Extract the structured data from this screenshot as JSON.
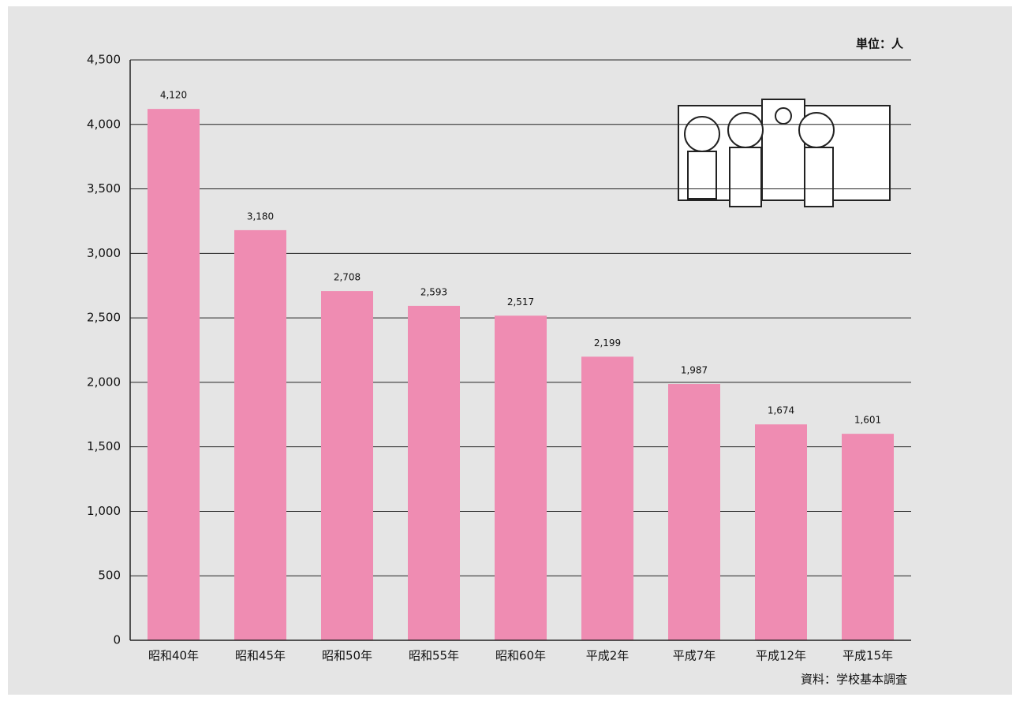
{
  "chart_data": {
    "type": "bar",
    "unit_label": "単位：人",
    "source": "資料：学校基本調査",
    "categories": [
      "昭和40年",
      "昭和45年",
      "昭和50年",
      "昭和55年",
      "昭和60年",
      "平成2年",
      "平成7年",
      "平成12年",
      "平成15年"
    ],
    "values": [
      4120,
      3180,
      2708,
      2593,
      2517,
      2199,
      1987,
      1674,
      1601
    ],
    "value_labels": [
      "4,120",
      "3,180",
      "2,708",
      "2,593",
      "2,517",
      "2,199",
      "1,987",
      "1,674",
      "1,601"
    ],
    "color": "#ef8cb2",
    "ylim": [
      0,
      4500
    ],
    "yticks": [
      0,
      500,
      {
        "value": 1000,
        "label": "1,000"
      },
      {
        "value": 1500,
        "label": "1,500"
      },
      {
        "value": 2000,
        "label": "2,000"
      },
      {
        "value": 2500,
        "label": "2,500"
      },
      {
        "value": 3000,
        "label": "3,000"
      },
      {
        "value": 3500,
        "label": "3,500"
      },
      {
        "value": 4000,
        "label": "4,000"
      },
      {
        "value": 4500,
        "label": "4,500"
      }
    ],
    "grid": true
  }
}
